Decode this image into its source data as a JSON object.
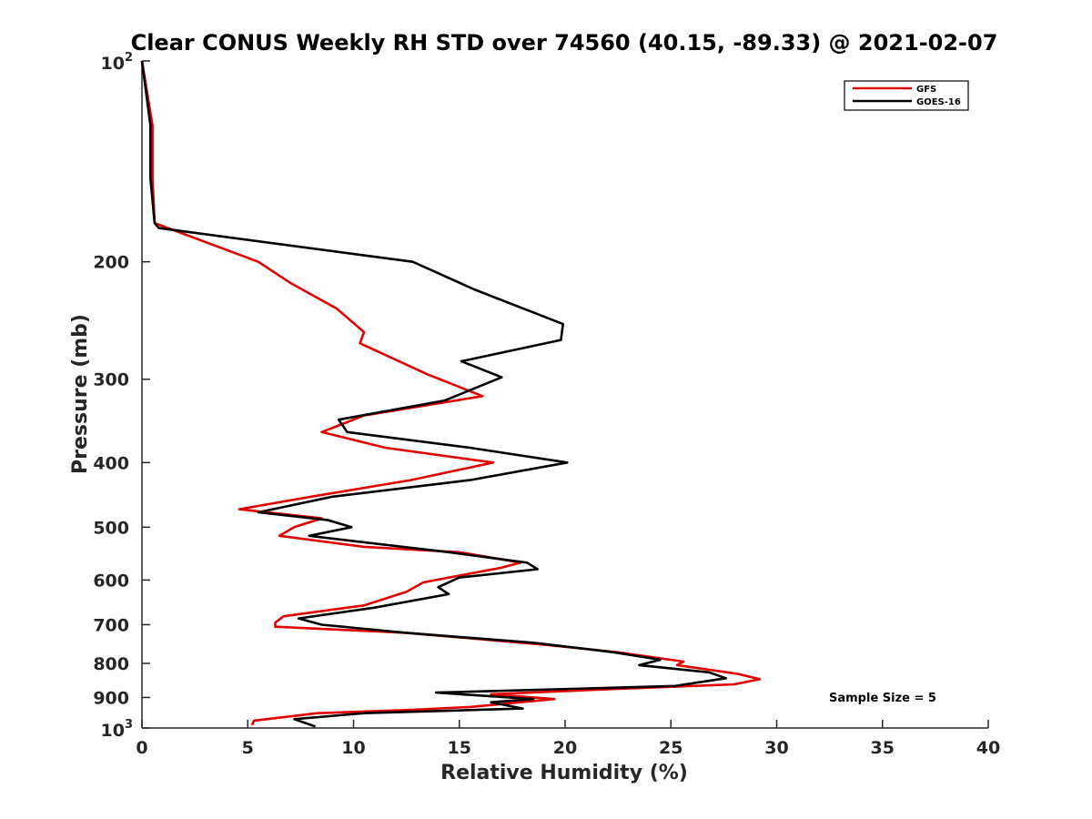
{
  "chart_data": {
    "type": "line",
    "title": "Clear CONUS Weekly RH STD over 74560 (40.15, -89.33) @ 2021-02-07",
    "xlabel": "Relative Humidity (%)",
    "ylabel": "Pressure (mb)",
    "xlim": [
      0,
      40
    ],
    "ylim": [
      100,
      1000
    ],
    "y_scale": "log",
    "y_reversed": true,
    "x_ticks": [
      0,
      5,
      10,
      15,
      20,
      25,
      30,
      35,
      40
    ],
    "y_ticks": [
      {
        "value": 100,
        "base": "10",
        "exp": "2"
      },
      {
        "value": 200,
        "label": "200"
      },
      {
        "value": 300,
        "label": "300"
      },
      {
        "value": 400,
        "label": "400"
      },
      {
        "value": 500,
        "label": "500"
      },
      {
        "value": 600,
        "label": "600"
      },
      {
        "value": 700,
        "label": "700"
      },
      {
        "value": 800,
        "label": "800"
      },
      {
        "value": 900,
        "label": "900"
      },
      {
        "value": 1000,
        "base": "10",
        "exp": "3"
      }
    ],
    "grid": false,
    "legend_position": "top-right",
    "annotation": "Sample Size = 5",
    "series": [
      {
        "name": "GFS",
        "color": "#e00000",
        "points": [
          [
            0.0,
            100
          ],
          [
            0.5,
            125
          ],
          [
            0.5,
            150
          ],
          [
            0.6,
            175
          ],
          [
            5.5,
            200
          ],
          [
            7.0,
            215
          ],
          [
            9.2,
            235
          ],
          [
            10.5,
            255
          ],
          [
            10.3,
            265
          ],
          [
            13.5,
            295
          ],
          [
            16.1,
            318
          ],
          [
            10.5,
            340
          ],
          [
            8.5,
            360
          ],
          [
            11.5,
            380
          ],
          [
            16.6,
            400
          ],
          [
            12.7,
            425
          ],
          [
            8.0,
            450
          ],
          [
            4.6,
            470
          ],
          [
            8.5,
            485
          ],
          [
            7.2,
            500
          ],
          [
            6.5,
            515
          ],
          [
            10.5,
            535
          ],
          [
            15.0,
            545
          ],
          [
            17.9,
            565
          ],
          [
            17.0,
            575
          ],
          [
            13.3,
            605
          ],
          [
            12.5,
            625
          ],
          [
            10.5,
            655
          ],
          [
            6.7,
            680
          ],
          [
            6.3,
            695
          ],
          [
            6.3,
            705
          ],
          [
            12.5,
            720
          ],
          [
            19.0,
            750
          ],
          [
            22.5,
            770
          ],
          [
            25.6,
            795
          ],
          [
            25.3,
            805
          ],
          [
            28.2,
            830
          ],
          [
            29.2,
            845
          ],
          [
            28.0,
            860
          ],
          [
            22.0,
            875
          ],
          [
            16.5,
            890
          ],
          [
            19.5,
            905
          ],
          [
            15.5,
            930
          ],
          [
            12.5,
            940
          ],
          [
            8.3,
            950
          ],
          [
            5.3,
            975
          ],
          [
            5.2,
            990
          ]
        ]
      },
      {
        "name": "GOES-16",
        "color": "#000000",
        "points": [
          [
            0.0,
            100
          ],
          [
            0.4,
            125
          ],
          [
            0.4,
            150
          ],
          [
            0.6,
            175
          ],
          [
            0.8,
            178
          ],
          [
            12.8,
            200
          ],
          [
            15.7,
            220
          ],
          [
            19.9,
            248
          ],
          [
            19.8,
            262
          ],
          [
            15.1,
            282
          ],
          [
            17.0,
            298
          ],
          [
            14.3,
            323
          ],
          [
            9.3,
            345
          ],
          [
            9.7,
            360
          ],
          [
            15.5,
            380
          ],
          [
            20.1,
            400
          ],
          [
            15.5,
            425
          ],
          [
            9.0,
            450
          ],
          [
            5.5,
            475
          ],
          [
            8.8,
            488
          ],
          [
            9.9,
            500
          ],
          [
            7.9,
            515
          ],
          [
            14.5,
            545
          ],
          [
            18.2,
            565
          ],
          [
            18.7,
            578
          ],
          [
            15.0,
            595
          ],
          [
            14.0,
            615
          ],
          [
            14.5,
            630
          ],
          [
            11.0,
            660
          ],
          [
            7.4,
            685
          ],
          [
            8.5,
            700
          ],
          [
            12.5,
            720
          ],
          [
            18.5,
            745
          ],
          [
            22.3,
            770
          ],
          [
            24.5,
            790
          ],
          [
            23.5,
            805
          ],
          [
            26.8,
            825
          ],
          [
            27.6,
            842
          ],
          [
            25.2,
            865
          ],
          [
            13.9,
            885
          ],
          [
            18.5,
            905
          ],
          [
            16.5,
            915
          ],
          [
            18.0,
            935
          ],
          [
            10.5,
            950
          ],
          [
            7.2,
            970
          ],
          [
            8.2,
            995
          ]
        ]
      }
    ]
  }
}
